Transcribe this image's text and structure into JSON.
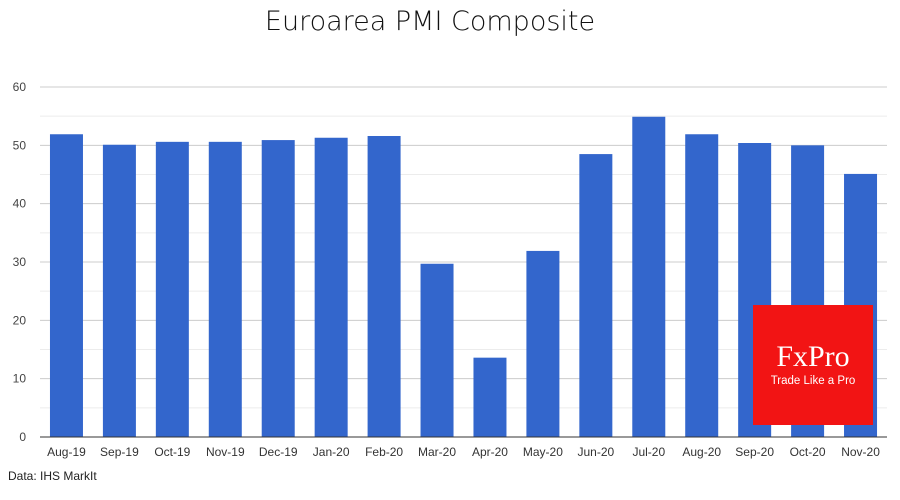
{
  "chart_data": {
    "type": "bar",
    "title": "Euroarea PMI Composite",
    "xlabel": "",
    "ylabel": "",
    "ylim": [
      0,
      60
    ],
    "yticks": [
      0,
      10,
      20,
      30,
      40,
      50,
      60
    ],
    "grid": true,
    "categories": [
      "Aug-19",
      "Sep-19",
      "Oct-19",
      "Nov-19",
      "Dec-19",
      "Jan-20",
      "Feb-20",
      "Mar-20",
      "Apr-20",
      "May-20",
      "Jun-20",
      "Jul-20",
      "Aug-20",
      "Sep-20",
      "Oct-20",
      "Nov-20"
    ],
    "values": [
      51.9,
      50.1,
      50.6,
      50.6,
      50.9,
      51.3,
      51.6,
      29.7,
      13.6,
      31.9,
      48.5,
      54.9,
      51.9,
      50.4,
      50.0,
      45.1
    ],
    "bar_color": "#3366cc"
  },
  "source": "Data: IHS MarkIt",
  "logo": {
    "brand": "FxPro",
    "tagline": "Trade Like a Pro",
    "color": "#f21414"
  }
}
